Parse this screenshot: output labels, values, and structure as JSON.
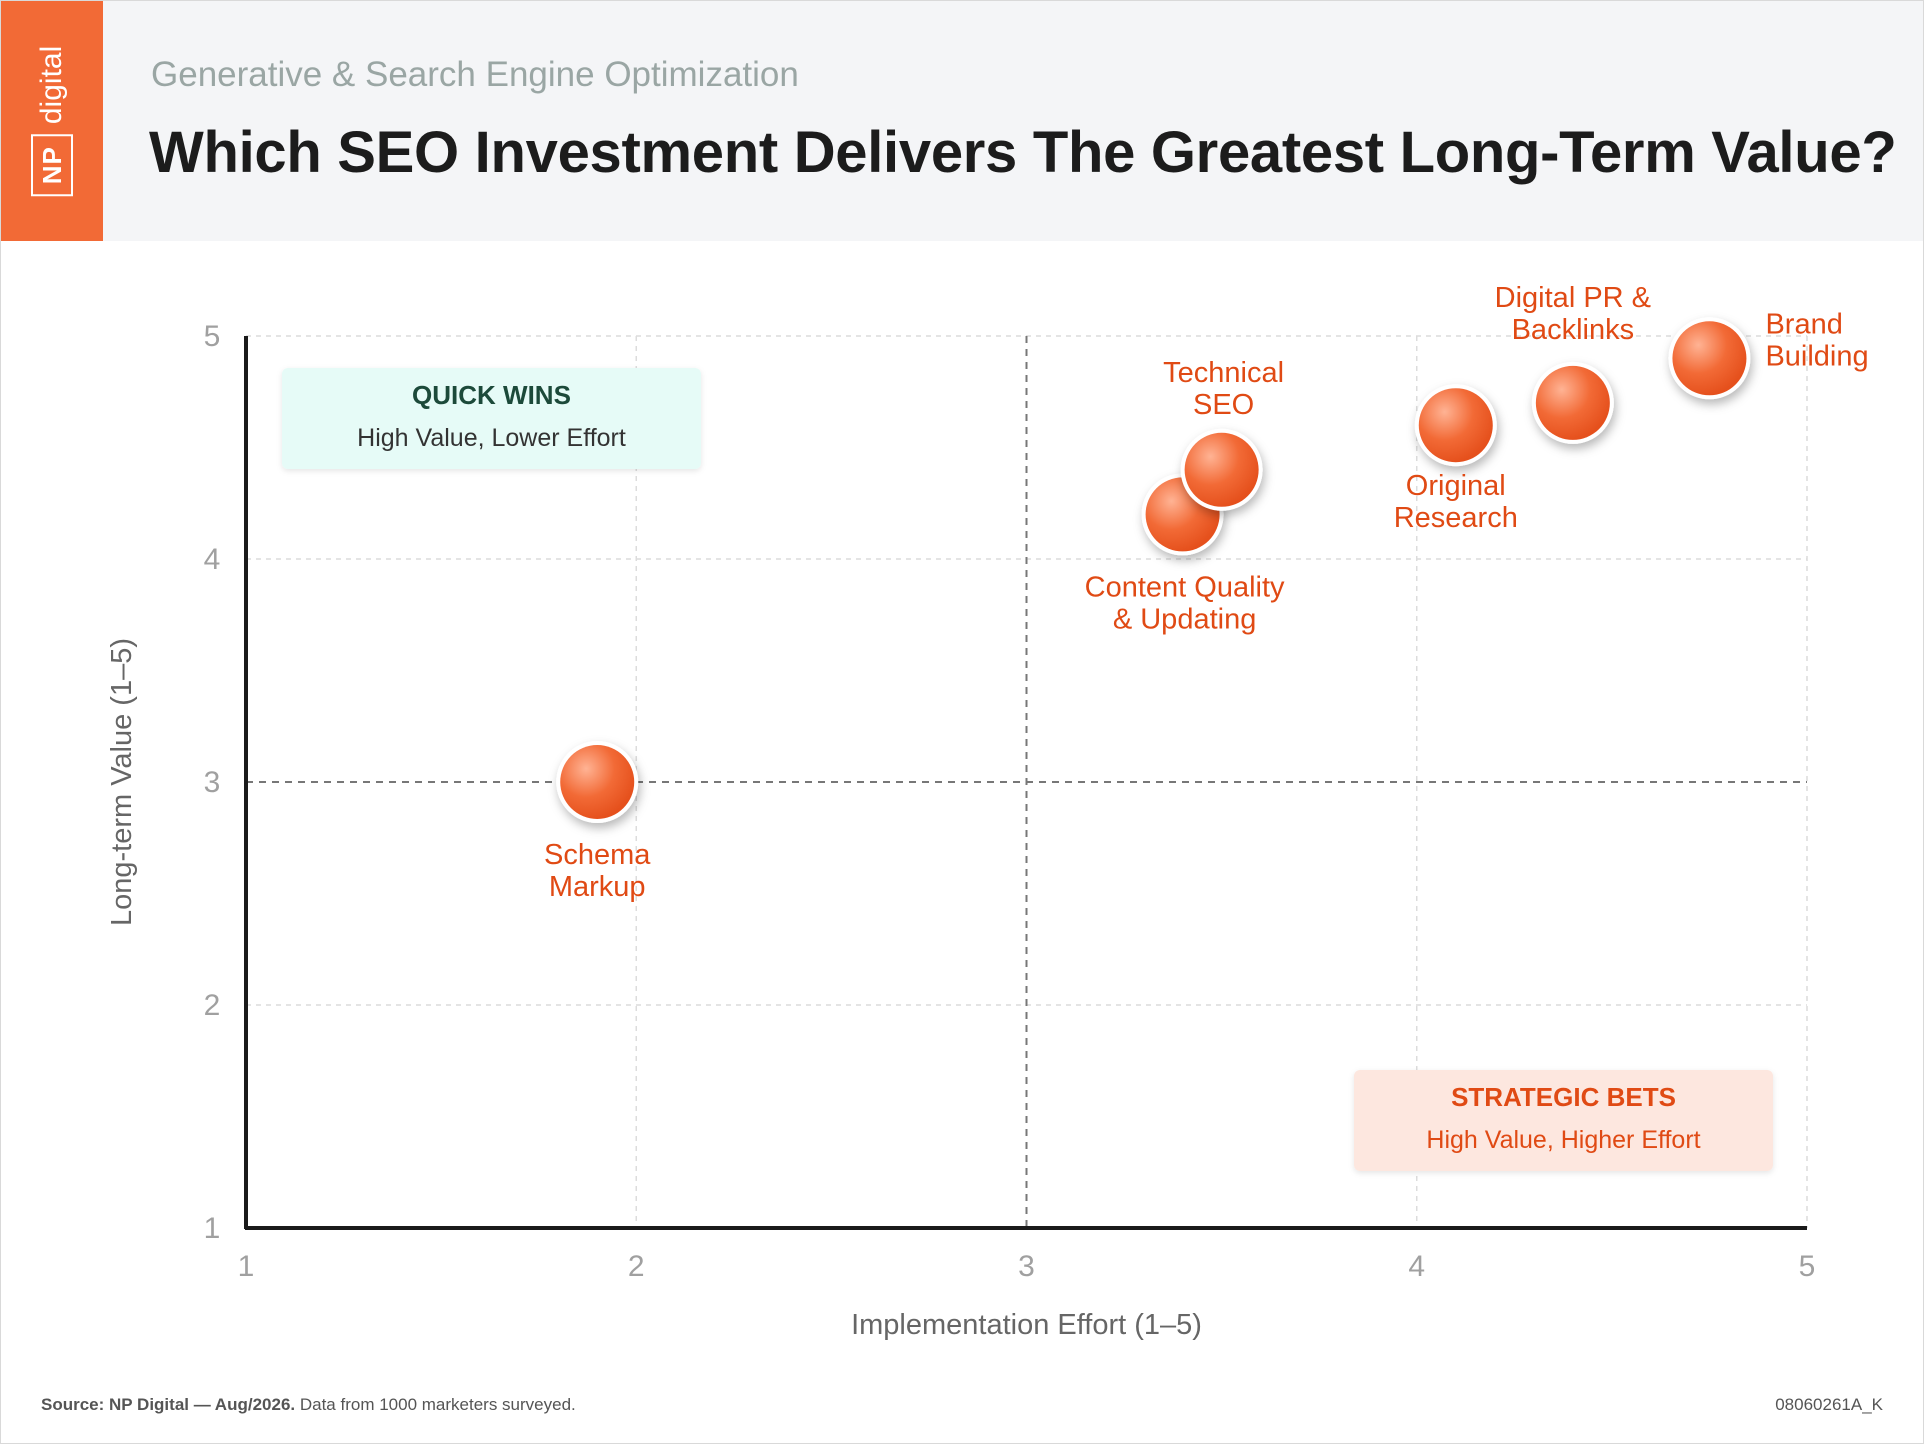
{
  "header": {
    "logo_np": "NP",
    "logo_digital": "digital",
    "subtitle": "Generative & Search Engine Optimization",
    "title": "Which SEO Investment Delivers The Greatest Long-Term Value?"
  },
  "chart_data": {
    "type": "scatter",
    "xlabel": "Implementation Effort (1–5)",
    "ylabel": "Long-term Value (1–5)",
    "xlim": [
      1,
      5
    ],
    "ylim": [
      1,
      5
    ],
    "xticks": [
      "1",
      "2",
      "3",
      "4",
      "5"
    ],
    "yticks": [
      "1",
      "2",
      "3",
      "4",
      "5"
    ],
    "grid": true,
    "quadrant_dividers": {
      "x": 3,
      "y": 3
    },
    "point_color": "#f26a36",
    "label_color": "#e04a14",
    "points": [
      {
        "label": [
          "Schema",
          "Markup"
        ],
        "x": 1.9,
        "y": 3.0
      },
      {
        "label": [
          "Content Quality",
          "& Updating"
        ],
        "x": 3.4,
        "y": 4.2
      },
      {
        "label": [
          "Technical",
          "SEO"
        ],
        "x": 3.5,
        "y": 4.4
      },
      {
        "label": [
          "Original",
          "Research"
        ],
        "x": 4.1,
        "y": 4.6
      },
      {
        "label": [
          "Digital PR &",
          "Backlinks"
        ],
        "x": 4.4,
        "y": 4.7
      },
      {
        "label": [
          "Brand",
          "Building"
        ],
        "x": 4.75,
        "y": 4.9
      }
    ],
    "annotations": [
      {
        "title": "QUICK WINS",
        "text": "High Value, Lower Effort",
        "bg": "#e6fbf7",
        "title_color": "#1c4a3a",
        "text_color": "#333333"
      },
      {
        "title": "STRATEGIC BETS",
        "text": "High Value, Higher Effort",
        "bg": "#fde7df",
        "title_color": "#e04a14",
        "text_color": "#e04a14"
      }
    ]
  },
  "footer": {
    "source_bold": "Source: NP Digital — Aug/2026.",
    "source_text": " Data from 1000 marketers surveyed.",
    "code": "08060261A_K"
  }
}
